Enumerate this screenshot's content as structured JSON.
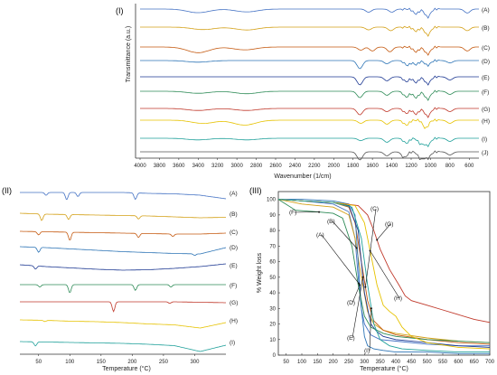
{
  "chart_data": [
    {
      "panel": "(I)",
      "type": "line",
      "title": "",
      "xlabel": "Wavenumber (1/cm)",
      "ylabel": "Transmittance (a.u.)",
      "xlim": [
        4000,
        500
      ],
      "x_reversed": true,
      "x_ticks": [
        4000,
        3800,
        3600,
        3400,
        3200,
        3000,
        2800,
        2600,
        2400,
        2200,
        2000,
        1800,
        1600,
        1400,
        1200,
        1000,
        800,
        600
      ],
      "grid": false,
      "series": [
        {
          "name": "(A)",
          "color": "#4472c4",
          "dips": [
            [
              3400,
              0.45
            ],
            [
              2900,
              0.35
            ],
            [
              1640,
              0.4
            ],
            [
              1400,
              0.4
            ],
            [
              1150,
              0.6
            ],
            [
              1030,
              1.0
            ],
            [
              620,
              0.5
            ]
          ]
        },
        {
          "name": "(B)",
          "color": "#d4a017",
          "dips": [
            [
              3350,
              0.3
            ],
            [
              2900,
              0.35
            ],
            [
              1640,
              0.35
            ],
            [
              1410,
              0.45
            ],
            [
              1150,
              0.5
            ],
            [
              1030,
              1.0
            ],
            [
              620,
              0.45
            ]
          ]
        },
        {
          "name": "(C)",
          "color": "#c55a11",
          "dips": [
            [
              3400,
              0.7
            ],
            [
              2920,
              0.35
            ],
            [
              1720,
              0.4
            ],
            [
              1600,
              0.5
            ],
            [
              1420,
              0.6
            ],
            [
              1150,
              0.6
            ],
            [
              1030,
              0.9
            ],
            [
              620,
              0.5
            ]
          ]
        },
        {
          "name": "(D)",
          "color": "#2e75b6",
          "dips": [
            [
              3400,
              0.2
            ],
            [
              1730,
              1.0
            ],
            [
              1450,
              0.4
            ],
            [
              1240,
              0.6
            ],
            [
              1150,
              0.5
            ],
            [
              1030,
              0.6
            ],
            [
              800,
              0.3
            ]
          ]
        },
        {
          "name": "(E)",
          "color": "#1f3a93",
          "dips": [
            [
              1730,
              1.0
            ],
            [
              1450,
              0.5
            ],
            [
              1250,
              0.6
            ],
            [
              1150,
              0.7
            ],
            [
              1030,
              0.9
            ],
            [
              800,
              0.4
            ]
          ]
        },
        {
          "name": "(F)",
          "color": "#2e8b57",
          "dips": [
            [
              3400,
              0.25
            ],
            [
              2900,
              0.3
            ],
            [
              1730,
              0.8
            ],
            [
              1450,
              0.5
            ],
            [
              1250,
              0.7
            ],
            [
              1150,
              0.8
            ],
            [
              1030,
              1.0
            ],
            [
              800,
              0.4
            ]
          ]
        },
        {
          "name": "(G)",
          "color": "#c0392b",
          "dips": [
            [
              3400,
              0.25
            ],
            [
              2900,
              0.25
            ],
            [
              1730,
              0.8
            ],
            [
              1450,
              0.4
            ],
            [
              1250,
              0.6
            ],
            [
              1150,
              0.7
            ],
            [
              1030,
              1.0
            ],
            [
              800,
              0.4
            ]
          ]
        },
        {
          "name": "(H)",
          "color": "#e6c200",
          "dips": [
            [
              3350,
              0.4
            ],
            [
              2920,
              0.6
            ],
            [
              1720,
              0.4
            ],
            [
              1450,
              0.5
            ],
            [
              1250,
              0.6
            ],
            [
              1050,
              1.0
            ],
            [
              800,
              0.4
            ]
          ]
        },
        {
          "name": "(I)",
          "color": "#1fa09a",
          "dips": [
            [
              3400,
              0.2
            ],
            [
              2900,
              0.2
            ],
            [
              1720,
              0.3
            ],
            [
              1450,
              0.5
            ],
            [
              1250,
              0.6
            ],
            [
              1100,
              0.7
            ],
            [
              1030,
              0.9
            ],
            [
              800,
              0.4
            ]
          ]
        },
        {
          "name": "(J)",
          "color": "#555555",
          "dips": [
            [
              1730,
              1.0
            ],
            [
              1450,
              0.5
            ],
            [
              1270,
              0.7
            ],
            [
              1100,
              0.9
            ],
            [
              1030,
              0.8
            ],
            [
              800,
              0.4
            ]
          ]
        }
      ]
    },
    {
      "panel": "(II)",
      "type": "line",
      "title": "",
      "xlabel": "Temperature (°C)",
      "ylabel": "",
      "xlim": [
        20,
        350
      ],
      "x_ticks": [
        50,
        100,
        150,
        200,
        250,
        300
      ],
      "grid": false,
      "series": [
        {
          "name": "(A)",
          "color": "#4472c4",
          "baseline": [
            0,
            0,
            0,
            0,
            0,
            0.1,
            0.15,
            0.3,
            0.7
          ],
          "peaks": [
            [
              62,
              0.35
            ],
            [
              95,
              0.9
            ],
            [
              113,
              0.5
            ],
            [
              205,
              0.8
            ]
          ]
        },
        {
          "name": "(B)",
          "color": "#d4a017",
          "baseline": [
            0,
            0.1,
            0.15,
            0.2,
            0.25,
            0.3,
            0.4,
            0.5,
            0.45
          ],
          "peaks": [
            [
              55,
              0.8
            ],
            [
              98,
              0.6
            ],
            [
              210,
              0.4
            ]
          ]
        },
        {
          "name": "(C)",
          "color": "#c55a11",
          "baseline": [
            0,
            0.05,
            0.1,
            0.15,
            0.2,
            0.25,
            0.3,
            0.3,
            0.2
          ],
          "peaks": [
            [
              50,
              0.4
            ],
            [
              100,
              1.0
            ],
            [
              210,
              0.5
            ],
            [
              265,
              0.3
            ]
          ]
        },
        {
          "name": "(D)",
          "color": "#2e75b6",
          "baseline": [
            0,
            0.1,
            0.25,
            0.4,
            0.55,
            0.65,
            0.75,
            0.8,
            0.1
          ],
          "peaks": [
            [
              50,
              0.6
            ],
            [
              300,
              0.2
            ]
          ]
        },
        {
          "name": "(E)",
          "color": "#1f3a93",
          "baseline": [
            0,
            0.2,
            0.35,
            0.5,
            0.6,
            0.55,
            0.4,
            0.2,
            -0.1
          ],
          "peaks": [
            [
              45,
              0.4
            ]
          ]
        },
        {
          "name": "(F)",
          "color": "#2e8b57",
          "baseline": [
            0,
            0,
            0,
            0,
            0,
            0,
            0,
            0,
            0
          ],
          "peaks": [
            [
              52,
              0.3
            ],
            [
              100,
              1.0
            ],
            [
              205,
              0.7
            ],
            [
              262,
              0.3
            ]
          ]
        },
        {
          "name": "(G)",
          "color": "#c0392b",
          "baseline": [
            0,
            0,
            0,
            0,
            0,
            0,
            0,
            0.05,
            0.1
          ],
          "peaks": [
            [
              170,
              1.2
            ],
            [
              260,
              0.2
            ]
          ]
        },
        {
          "name": "(H)",
          "color": "#e6c200",
          "baseline": [
            0,
            0.05,
            0.15,
            0.2,
            0.3,
            0.45,
            0.55,
            0.9,
            0.3
          ],
          "peaks": [
            [
              60,
              0.15
            ]
          ]
        },
        {
          "name": "(I)",
          "color": "#1fa09a",
          "baseline": [
            0,
            0.05,
            0.1,
            0.15,
            0.2,
            0.3,
            0.45,
            1.1,
            0.4
          ],
          "peaks": [
            [
              45,
              0.5
            ]
          ]
        }
      ]
    },
    {
      "panel": "(III)",
      "type": "line",
      "title": "",
      "xlabel": "Temperature (°C)",
      "ylabel": "% Weight loss",
      "xlim": [
        25,
        700
      ],
      "ylim": [
        0,
        105
      ],
      "x_ticks": [
        50,
        100,
        150,
        200,
        250,
        300,
        350,
        400,
        450,
        500,
        550,
        600,
        650,
        700
      ],
      "y_ticks": [
        0,
        10,
        20,
        30,
        40,
        50,
        60,
        70,
        80,
        90,
        100
      ],
      "grid": false,
      "series": [
        {
          "name": "(A)",
          "color": "#4472c4",
          "x": [
            25,
            100,
            200,
            250,
            270,
            280,
            290,
            300,
            320,
            350,
            400,
            500,
            600,
            700
          ],
          "y": [
            100,
            99,
            97,
            92,
            75,
            50,
            30,
            20,
            13,
            10,
            9,
            7,
            6,
            6
          ]
        },
        {
          "name": "(B)",
          "color": "#d4a017",
          "x": [
            25,
            100,
            200,
            250,
            270,
            290,
            310,
            330,
            360,
            400,
            500,
            600,
            700
          ],
          "y": [
            100,
            97,
            95,
            90,
            75,
            50,
            28,
            20,
            16,
            14,
            11,
            9,
            8
          ]
        },
        {
          "name": "(C)",
          "color": "#c55a11",
          "x": [
            25,
            100,
            200,
            250,
            270,
            290,
            310,
            330,
            360,
            400,
            500,
            600,
            700
          ],
          "y": [
            100,
            99,
            98,
            95,
            85,
            60,
            35,
            22,
            16,
            13,
            10,
            8,
            7
          ]
        },
        {
          "name": "(D)",
          "color": "#2e75b6",
          "x": [
            25,
            100,
            200,
            250,
            270,
            280,
            290,
            300,
            310,
            330,
            360,
            400,
            500,
            600,
            700
          ],
          "y": [
            100,
            100,
            99,
            97,
            90,
            60,
            30,
            12,
            6,
            4,
            3,
            2,
            2,
            1,
            1
          ]
        },
        {
          "name": "(E)",
          "color": "#1f3a93",
          "x": [
            25,
            100,
            200,
            250,
            280,
            300,
            320,
            340,
            360,
            400,
            500,
            600,
            700
          ],
          "y": [
            100,
            99,
            98,
            96,
            80,
            40,
            20,
            15,
            12,
            10,
            8,
            6,
            5
          ]
        },
        {
          "name": "(F)",
          "color": "#2e8b57",
          "x": [
            25,
            80,
            150,
            200,
            230,
            260,
            280,
            300,
            320,
            360,
            400,
            500,
            600,
            700
          ],
          "y": [
            100,
            93,
            92,
            91,
            88,
            70,
            45,
            25,
            18,
            14,
            12,
            10,
            9,
            8
          ]
        },
        {
          "name": "(G)",
          "color": "#c0392b",
          "x": [
            25,
            100,
            200,
            280,
            310,
            330,
            350,
            380,
            410,
            430,
            450,
            500,
            550,
            600,
            650,
            700
          ],
          "y": [
            100,
            99,
            98,
            96,
            90,
            80,
            68,
            55,
            45,
            38,
            35,
            32,
            29,
            26,
            23,
            21
          ]
        },
        {
          "name": "(H)",
          "color": "#e6c200",
          "x": [
            25,
            100,
            200,
            270,
            300,
            320,
            340,
            360,
            380,
            400,
            420,
            450,
            500,
            600,
            700
          ],
          "y": [
            100,
            99,
            98,
            96,
            85,
            65,
            45,
            32,
            28,
            25,
            18,
            12,
            8,
            5,
            4
          ]
        },
        {
          "name": "(I)",
          "color": "#1fa09a",
          "x": [
            25,
            100,
            200,
            260,
            290,
            310,
            330,
            350,
            380,
            420,
            500,
            600,
            700
          ],
          "y": [
            100,
            99,
            98,
            95,
            75,
            45,
            20,
            10,
            6,
            4,
            3,
            2,
            2
          ]
        }
      ],
      "annotations": [
        {
          "label": "(A)",
          "target_series": "(A)",
          "target_x": 282
        },
        {
          "label": "(B)",
          "target_series": "(B)",
          "target_x": 275
        },
        {
          "label": "(C)",
          "target_series": "(C)",
          "target_x": 303
        },
        {
          "label": "(D)",
          "target_series": "(D)",
          "target_x": 285
        },
        {
          "label": "(E)",
          "target_series": "(E)",
          "target_x": 295
        },
        {
          "label": "(F)",
          "target_series": "(F)",
          "target_x": 155
        },
        {
          "label": "(G)",
          "target_series": "(G)",
          "target_x": 340
        },
        {
          "label": "(H)",
          "target_series": "(H)",
          "target_x": 318
        },
        {
          "label": "(I)",
          "target_series": "(I)",
          "target_x": 322
        }
      ]
    }
  ]
}
